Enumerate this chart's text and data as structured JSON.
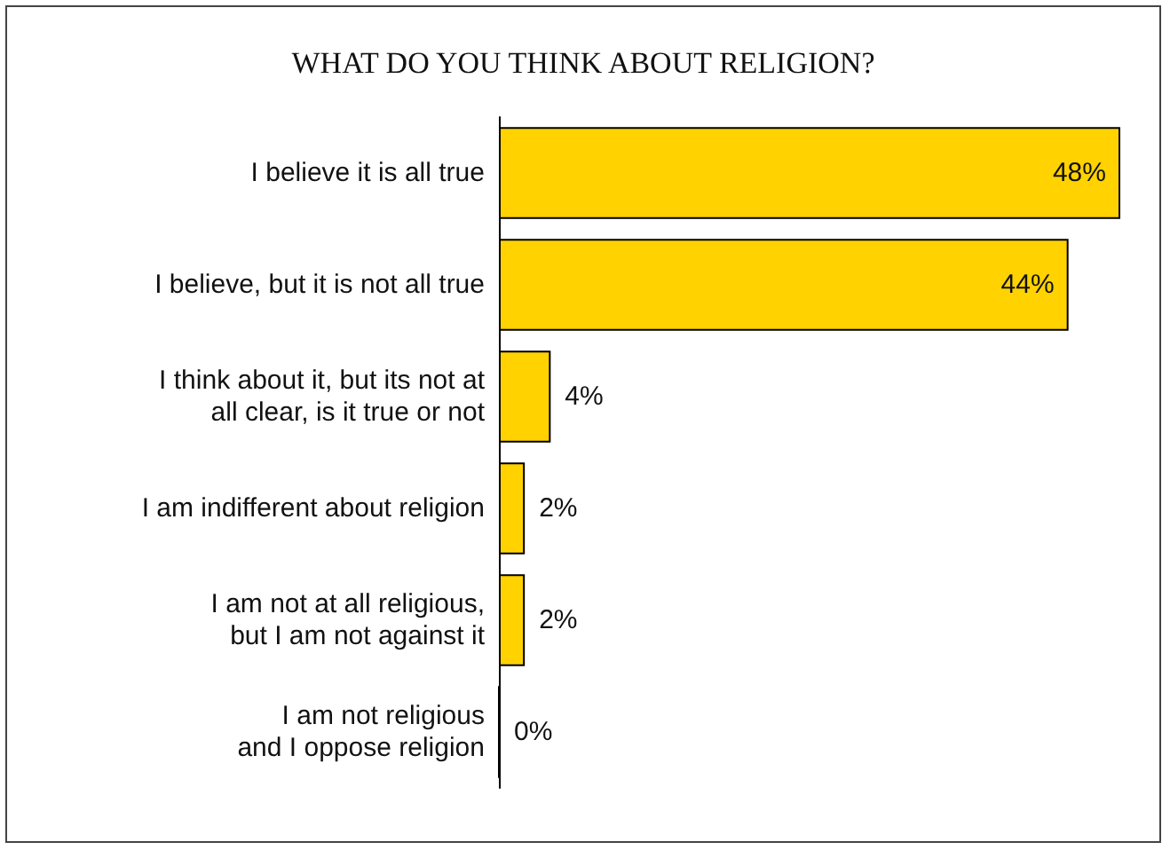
{
  "chart_data": {
    "type": "bar",
    "orientation": "horizontal",
    "title": "WHAT DO YOU THINK ABOUT RELIGION?",
    "categories": [
      "I believe it is all true",
      "I believe, but it is not all true",
      "I think about it, but its not at\nall clear, is it true or not",
      "I am indifferent about religion",
      "I am not at all religious,\nbut I am not against it",
      "I am not religious\nand I oppose religion"
    ],
    "values": [
      48,
      44,
      4,
      2,
      2,
      0
    ],
    "value_labels": [
      "48%",
      "44%",
      "4%",
      "2%",
      "2%",
      "0%"
    ],
    "color": "#ffd200"
  }
}
